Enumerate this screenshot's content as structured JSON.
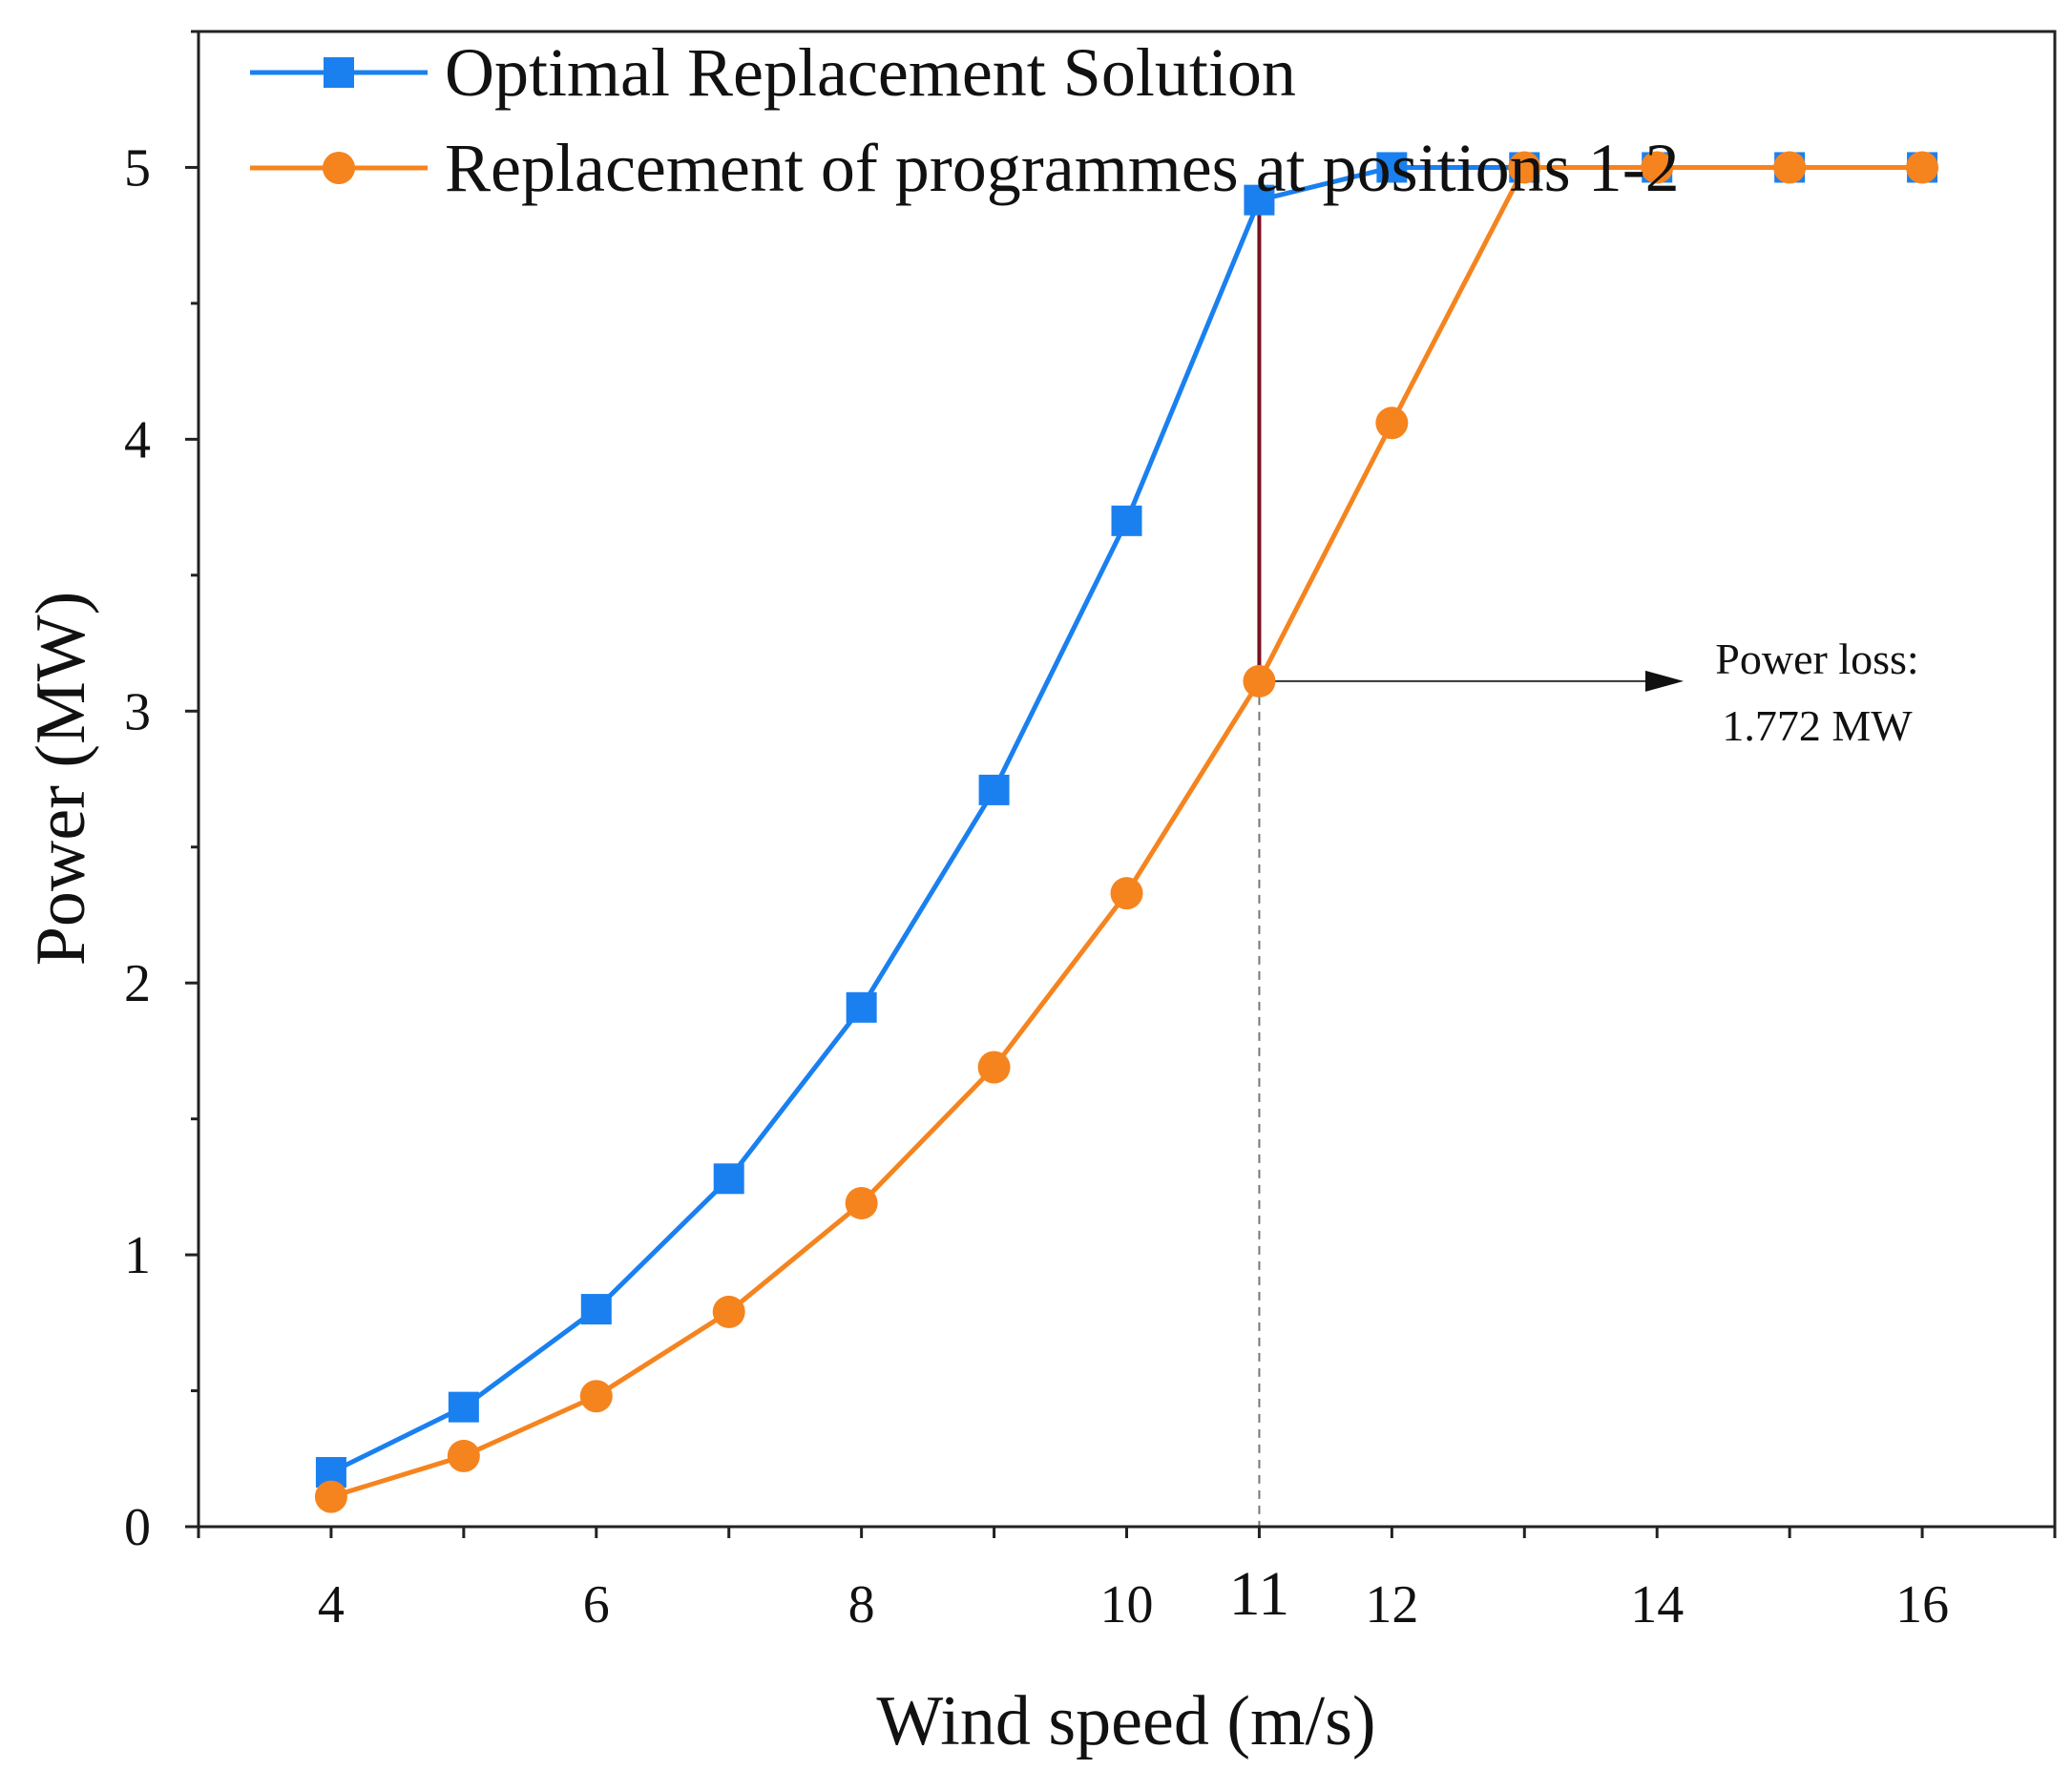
{
  "chart_data": {
    "type": "line",
    "title": "",
    "xlabel": "Wind speed (m/s)",
    "ylabel": "Power (MW)",
    "xlim": [
      3,
      17
    ],
    "ylim": [
      0,
      5.5
    ],
    "x_ticks": [
      4,
      6,
      8,
      10,
      11,
      12,
      14,
      16
    ],
    "y_ticks": [
      0,
      1,
      2,
      3,
      4,
      5
    ],
    "grid": false,
    "legend_position": "top-left",
    "series": [
      {
        "name": "Optimal Replacement Solution",
        "color": "#1a80f0",
        "marker": "square",
        "x": [
          4,
          5,
          6,
          7,
          8,
          9,
          10,
          11,
          12,
          13,
          14,
          15,
          16
        ],
        "values": [
          0.2,
          0.44,
          0.8,
          1.28,
          1.91,
          2.71,
          3.7,
          4.88,
          5.0,
          5.0,
          5.0,
          5.0,
          5.0
        ]
      },
      {
        "name": "Replacement of programmes at positions 1-2",
        "color": "#f5841f",
        "marker": "circle",
        "x": [
          4,
          5,
          6,
          7,
          8,
          9,
          10,
          11,
          12,
          13,
          14,
          15,
          16
        ],
        "values": [
          0.11,
          0.26,
          0.48,
          0.79,
          1.19,
          1.69,
          2.33,
          3.11,
          4.06,
          5.0,
          5.0,
          5.0,
          5.0
        ]
      }
    ],
    "annotations": {
      "x": 11,
      "y_top": 4.88,
      "y_bottom": 3.11,
      "line_color": "#7a1020",
      "label_line1": "Power loss:",
      "label_line2": "1.772 MW",
      "label_x": 14.2
    }
  }
}
